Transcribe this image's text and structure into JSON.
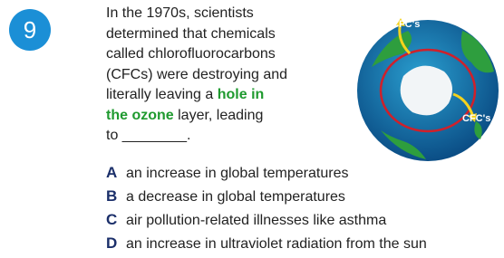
{
  "question": {
    "number": "9",
    "lines": [
      [
        "In the 1970s, scientists"
      ],
      [
        "determined that chemicals"
      ],
      [
        "called chlorofluorocarbons"
      ],
      [
        "(CFCs) were destroying and"
      ],
      [
        "literally leaving a ",
        "hole in"
      ],
      [
        "the ozone",
        " layer, leading"
      ],
      [
        "to ________."
      ]
    ]
  },
  "figure": {
    "labels": [
      "CFC's",
      "CFC's"
    ]
  },
  "options": [
    {
      "letter": "A",
      "text": "an increase in global temperatures"
    },
    {
      "letter": "B",
      "text": "a decrease in global temperatures"
    },
    {
      "letter": "C",
      "text": "air pollution-related illnesses like asthma"
    },
    {
      "letter": "D",
      "text": "an increase in ultraviolet radiation from the sun"
    }
  ]
}
